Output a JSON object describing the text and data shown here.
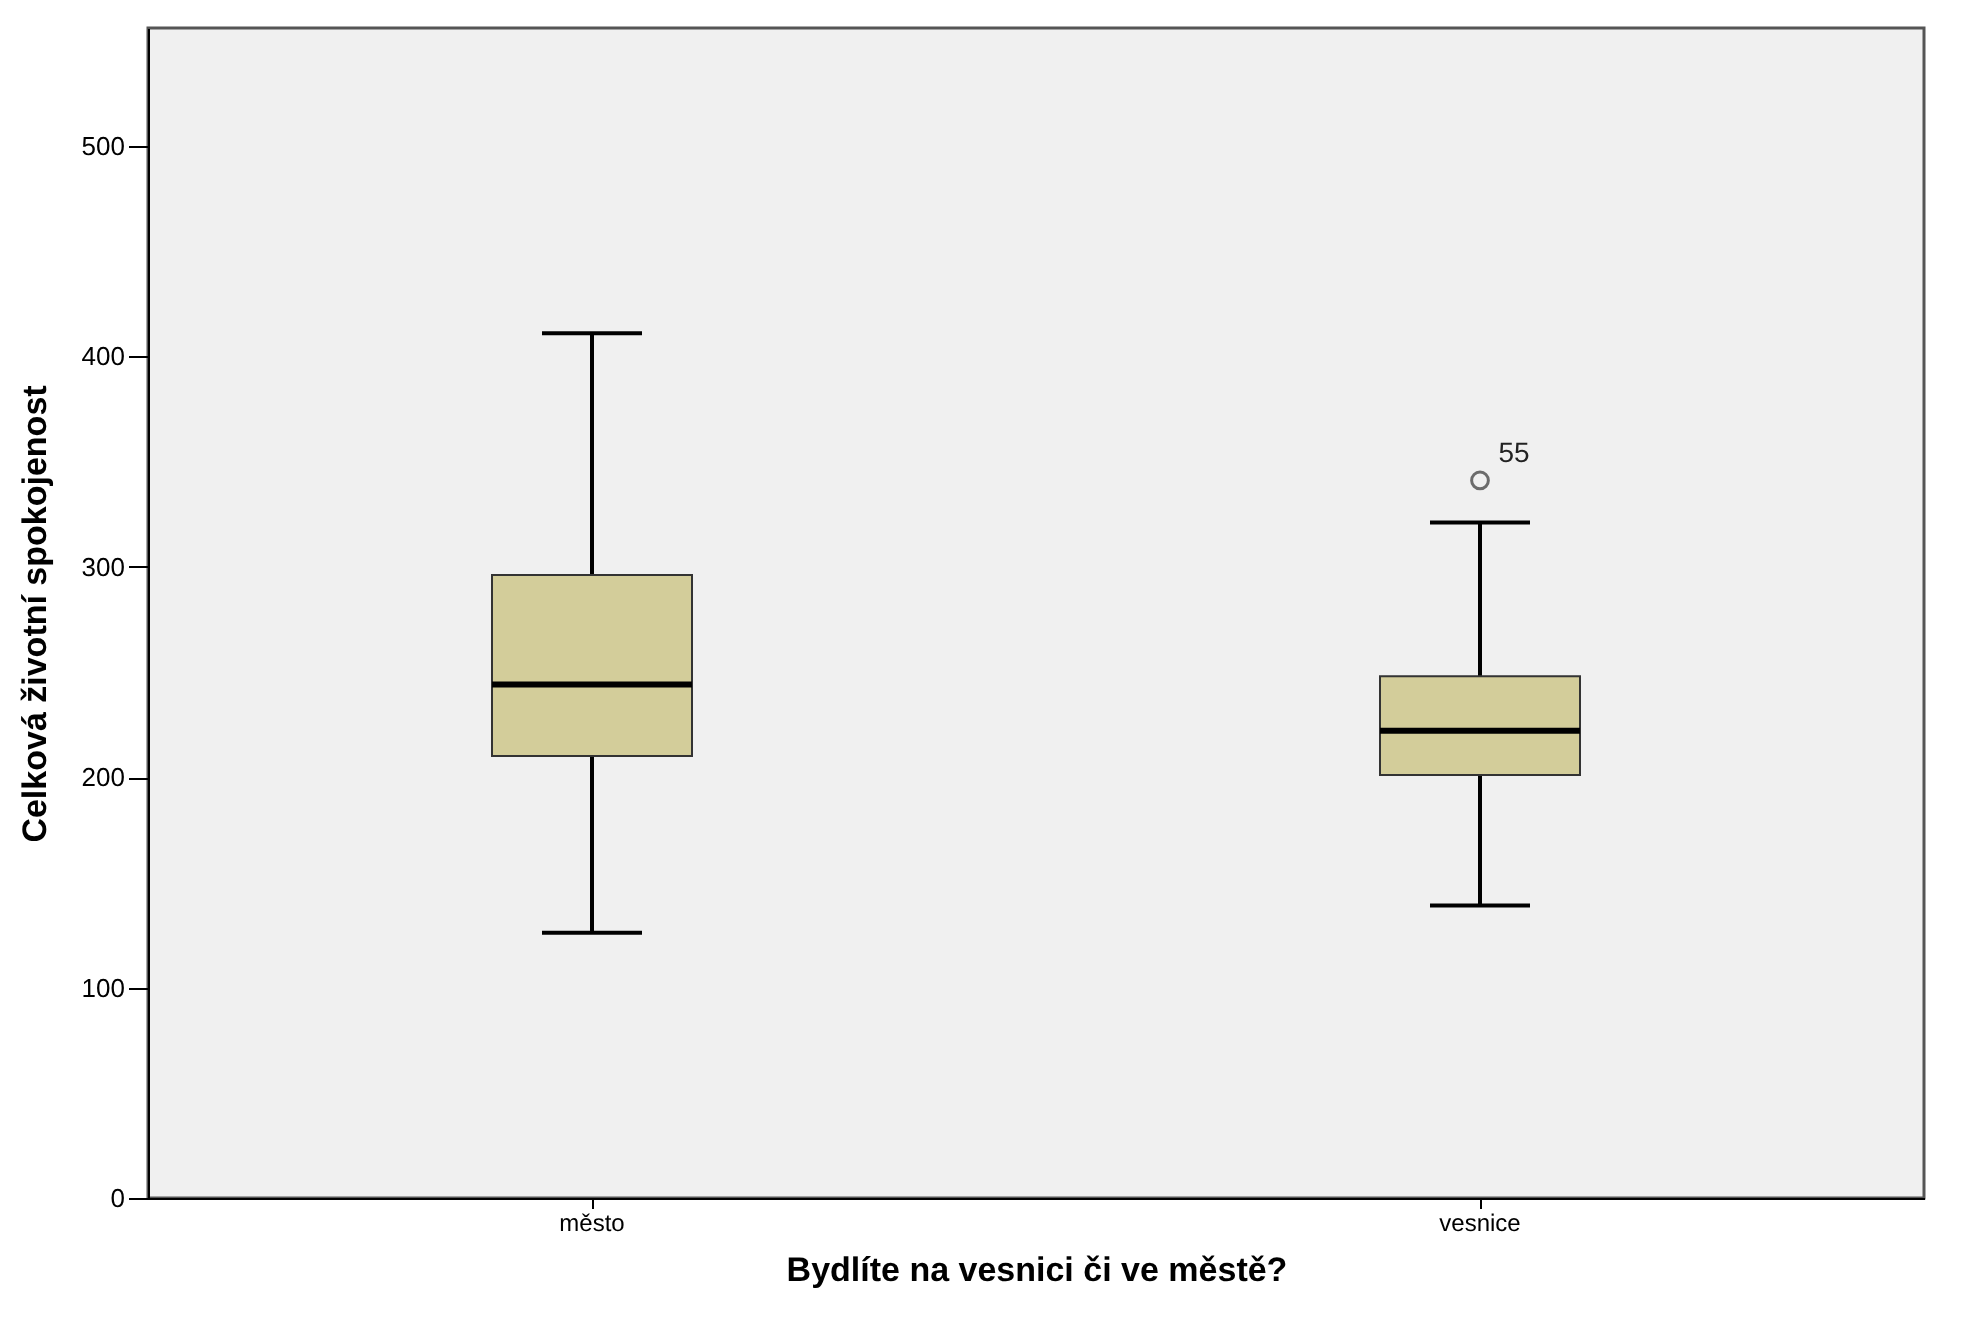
{
  "chart_data": {
    "type": "box",
    "xlabel": "Bydlíte na vesnici či ve městě?",
    "ylabel": "Celková životní spokojenost",
    "categories": [
      "město",
      "vesnice"
    ],
    "boxes": [
      {
        "low": 126,
        "q1": 210,
        "median": 244,
        "q3": 296,
        "high": 411
      },
      {
        "low": 139,
        "q1": 201,
        "median": 222,
        "q3": 248,
        "high": 321,
        "outliers": [
          341
        ]
      }
    ],
    "color": "#d3cd9a",
    "ylim": [
      0,
      556
    ],
    "yticks": [
      0,
      100,
      200,
      300,
      400,
      500
    ],
    "annotations": [
      "55"
    ],
    "grid": false
  }
}
